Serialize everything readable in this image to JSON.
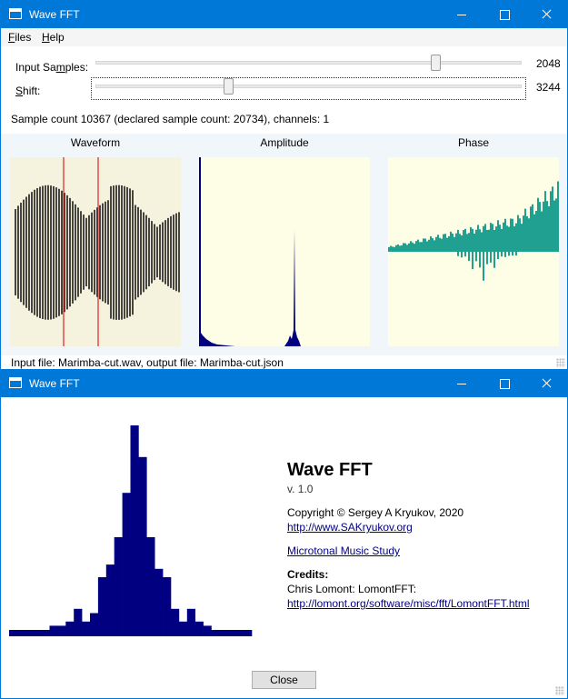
{
  "main_window": {
    "title": "Wave FFT",
    "menu": [
      {
        "accel": "F",
        "rest": "iles"
      },
      {
        "accel": "H",
        "rest": "elp"
      }
    ],
    "input_samples": {
      "label_pre": "Input Sa",
      "label_accel": "m",
      "label_post": "ples:",
      "value": "2048",
      "level": 0.92
    },
    "shift": {
      "label_accel": "S",
      "label_post": "hift:",
      "value": "3244",
      "level": 0.31
    },
    "status_line": "Sample count 10367 (declared sample count: 20734), channels: 1",
    "plots": [
      {
        "title": "Waveform",
        "bg": "#f5f3dd"
      },
      {
        "title": "Amplitude",
        "bg": "#fefde5"
      },
      {
        "title": "Phase",
        "bg": "#fefde5"
      }
    ],
    "file_line": "Input file: Marimba-cut.wav, output file: Marimba-cut.json"
  },
  "about_window": {
    "title": "Wave FFT",
    "app_name": "Wave FFT",
    "version": "v. 1.0",
    "copyright": "Copyright © Sergey A Kryukov, 2020",
    "website": "http://www.SAKryukov.org",
    "microtonal_link": "Microtonal Music Study",
    "credits_heading": "Credits:",
    "credits_text": "Chris Lomont: LomontFFT:",
    "credits_link": "http://lomont.org/software/misc/fft/LomontFFT.html",
    "close_label": "Close",
    "logo_bars": [
      0.03,
      0.03,
      0.03,
      0.03,
      0.03,
      0.05,
      0.05,
      0.07,
      0.13,
      0.07,
      0.11,
      0.28,
      0.34,
      0.47,
      0.68,
      1.0,
      0.85,
      0.47,
      0.32,
      0.28,
      0.13,
      0.07,
      0.13,
      0.07,
      0.05,
      0.03,
      0.03,
      0.03,
      0.03,
      0.03
    ]
  },
  "colors": {
    "titlebar": "#0078d7",
    "waveform_trace": "#1a1a1a",
    "marker": "#e02020",
    "amplitude": "#000080",
    "phase": "#20a090",
    "logo": "#000080"
  }
}
